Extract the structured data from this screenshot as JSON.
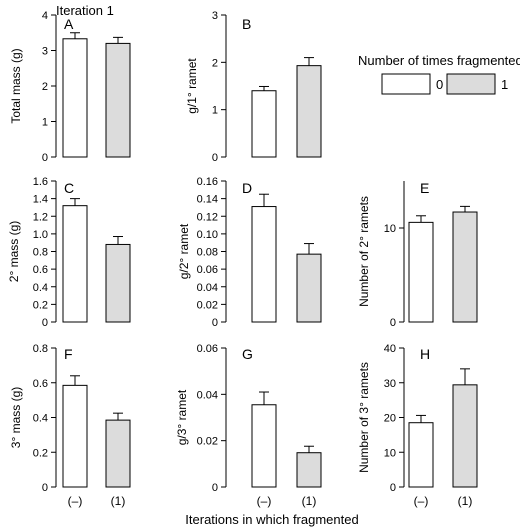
{
  "figure": {
    "title": "Iteration 1",
    "xlabel": "Iterations in which fragmented",
    "legend": {
      "title": "Number of times fragmented",
      "entries": [
        {
          "label": "0",
          "color": "#ffffff"
        },
        {
          "label": "1",
          "color": "#dcdcdc"
        }
      ]
    }
  },
  "chart_data": [
    {
      "panel": "A",
      "type": "bar",
      "ylabel": "Total mass (g)",
      "ylim": [
        0,
        4
      ],
      "yticks": [
        0,
        1,
        2,
        3,
        4
      ],
      "categories": [
        "(–)",
        "(1)"
      ],
      "values": [
        3.33,
        3.2
      ],
      "errors": [
        0.17,
        0.17
      ],
      "colors": [
        "#ffffff",
        "#dcdcdc"
      ],
      "show_xticklabels": false
    },
    {
      "panel": "B",
      "type": "bar",
      "ylabel": "g/1° ramet",
      "ylim": [
        0,
        3
      ],
      "yticks": [
        0,
        1,
        2,
        3
      ],
      "categories": [
        "(–)",
        "(1)"
      ],
      "values": [
        1.4,
        1.93
      ],
      "errors": [
        0.09,
        0.17
      ],
      "colors": [
        "#ffffff",
        "#dcdcdc"
      ],
      "show_xticklabels": false
    },
    {
      "panel": "C",
      "type": "bar",
      "ylabel": "2° mass (g)",
      "ylim": [
        0,
        1.6
      ],
      "yticks": [
        0,
        0.2,
        0.4,
        0.6,
        0.8,
        1.0,
        1.2,
        1.4,
        1.6
      ],
      "ytick_labels": [
        "0",
        "0.2",
        "0.4",
        "0.6",
        "0.8",
        "1.0",
        "1.2",
        "1.4",
        "1.6"
      ],
      "categories": [
        "(–)",
        "(1)"
      ],
      "values": [
        1.32,
        0.88
      ],
      "errors": [
        0.08,
        0.09
      ],
      "colors": [
        "#ffffff",
        "#dcdcdc"
      ],
      "show_xticklabels": false
    },
    {
      "panel": "D",
      "type": "bar",
      "ylabel": "g/2° ramet",
      "ylim": [
        0,
        0.16
      ],
      "yticks": [
        0,
        0.02,
        0.04,
        0.06,
        0.08,
        0.1,
        0.12,
        0.14,
        0.16
      ],
      "ytick_labels": [
        "0",
        "0.02",
        "0.04",
        "0.06",
        "0.08",
        "0.10",
        "0.12",
        "0.14",
        "0.16"
      ],
      "categories": [
        "(–)",
        "(1)"
      ],
      "values": [
        0.131,
        0.077
      ],
      "errors": [
        0.014,
        0.012
      ],
      "colors": [
        "#ffffff",
        "#dcdcdc"
      ],
      "show_xticklabels": false
    },
    {
      "panel": "E",
      "type": "bar",
      "ylabel": "Number of 2° ramets",
      "ylim": [
        0,
        15
      ],
      "yticks": [
        0,
        10
      ],
      "ytick_labels": [
        "0",
        "10"
      ],
      "categories": [
        "(–)",
        "(1)"
      ],
      "values": [
        10.6,
        11.7
      ],
      "errors": [
        0.7,
        0.6
      ],
      "colors": [
        "#ffffff",
        "#dcdcdc"
      ],
      "show_xticklabels": false
    },
    {
      "panel": "F",
      "type": "bar",
      "ylabel": "3° mass (g)",
      "ylim": [
        0,
        0.8
      ],
      "yticks": [
        0,
        0.2,
        0.4,
        0.6,
        0.8
      ],
      "ytick_labels": [
        "0",
        "0.2",
        "0.4",
        "0.6",
        "0.8"
      ],
      "categories": [
        "(–)",
        "(1)"
      ],
      "values": [
        0.585,
        0.385
      ],
      "errors": [
        0.055,
        0.04
      ],
      "colors": [
        "#ffffff",
        "#dcdcdc"
      ],
      "show_xticklabels": true
    },
    {
      "panel": "G",
      "type": "bar",
      "ylabel": "g/3° ramet",
      "ylim": [
        0,
        0.06
      ],
      "yticks": [
        0,
        0.02,
        0.04,
        0.06
      ],
      "ytick_labels": [
        "0",
        "0.02",
        "0.04",
        "0.06"
      ],
      "categories": [
        "(–)",
        "(1)"
      ],
      "values": [
        0.0355,
        0.0148
      ],
      "errors": [
        0.0055,
        0.0028
      ],
      "colors": [
        "#ffffff",
        "#dcdcdc"
      ],
      "show_xticklabels": true
    },
    {
      "panel": "H",
      "type": "bar",
      "ylabel": "Number of 3° ramets",
      "ylim": [
        0,
        40
      ],
      "yticks": [
        0,
        10,
        20,
        30,
        40
      ],
      "ytick_labels": [
        "0",
        "10",
        "20",
        "30",
        "40"
      ],
      "categories": [
        "(–)",
        "(1)"
      ],
      "values": [
        18.5,
        29.4
      ],
      "errors": [
        2.1,
        4.6
      ],
      "colors": [
        "#ffffff",
        "#dcdcdc"
      ],
      "show_xticklabels": true
    }
  ]
}
